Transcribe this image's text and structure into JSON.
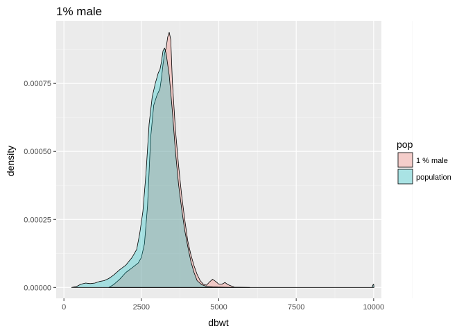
{
  "chart_data": {
    "type": "area",
    "title": "1% male",
    "xlabel": "dbwt",
    "ylabel": "density",
    "xlim": [
      -250,
      10250
    ],
    "ylim": [
      -4e-05,
      0.00098
    ],
    "x_ticks": [
      0,
      2500,
      5000,
      7500,
      10000
    ],
    "x_tick_labels": [
      "0",
      "2500",
      "5000",
      "7500",
      "10000"
    ],
    "y_ticks": [
      0,
      0.00025,
      0.0005,
      0.00075
    ],
    "y_tick_labels": [
      "0.00000",
      "0.00025",
      "0.00050",
      "0.00075"
    ],
    "grid": true,
    "legend": {
      "title": "pop",
      "position": "right"
    },
    "series": [
      {
        "name": "1 % male",
        "fill": "#F8766D",
        "points": [
          [
            1450,
            0
          ],
          [
            1600,
            1e-05
          ],
          [
            1800,
            3e-05
          ],
          [
            2000,
            5.5e-05
          ],
          [
            2200,
            7.2e-05
          ],
          [
            2400,
            9e-05
          ],
          [
            2500,
            0.00011
          ],
          [
            2600,
            0.00016
          ],
          [
            2700,
            0.0003
          ],
          [
            2800,
            0.00055
          ],
          [
            2900,
            0.00067
          ],
          [
            3000,
            0.000705
          ],
          [
            3100,
            0.00073
          ],
          [
            3150,
            0.00077
          ],
          [
            3200,
            0.00082
          ],
          [
            3250,
            0.00086
          ],
          [
            3300,
            0.00088
          ],
          [
            3350,
            0.00092
          ],
          [
            3400,
            0.000938
          ],
          [
            3450,
            0.00091
          ],
          [
            3500,
            0.00076
          ],
          [
            3600,
            0.00058
          ],
          [
            3700,
            0.00045
          ],
          [
            3800,
            0.00034
          ],
          [
            3900,
            0.00025
          ],
          [
            4000,
            0.00017
          ],
          [
            4100,
            0.00012
          ],
          [
            4200,
            8e-05
          ],
          [
            4300,
            4.8e-05
          ],
          [
            4400,
            2.5e-05
          ],
          [
            4500,
            1.2e-05
          ],
          [
            4600,
            8e-06
          ],
          [
            4700,
            2e-05
          ],
          [
            4800,
            3e-05
          ],
          [
            4900,
            2.2e-05
          ],
          [
            5000,
            1.2e-05
          ],
          [
            5100,
            1.2e-05
          ],
          [
            5200,
            1.8e-05
          ],
          [
            5300,
            1e-05
          ],
          [
            5500,
            1e-06
          ],
          [
            6000,
            0
          ]
        ]
      },
      {
        "name": "population",
        "fill": "#00BFC4",
        "points": [
          [
            250,
            0
          ],
          [
            400,
            3e-06
          ],
          [
            550,
            1.2e-05
          ],
          [
            700,
            1.6e-05
          ],
          [
            850,
            1.4e-05
          ],
          [
            1000,
            1.6e-05
          ],
          [
            1150,
            2.2e-05
          ],
          [
            1300,
            2.5e-05
          ],
          [
            1450,
            3.3e-05
          ],
          [
            1600,
            4.5e-05
          ],
          [
            1800,
            6.5e-05
          ],
          [
            2000,
            8.2e-05
          ],
          [
            2200,
            0.00011
          ],
          [
            2350,
            0.00014
          ],
          [
            2450,
            0.0002
          ],
          [
            2550,
            0.00028
          ],
          [
            2650,
            0.00042
          ],
          [
            2750,
            0.0006
          ],
          [
            2850,
            0.0007
          ],
          [
            2950,
            0.00075
          ],
          [
            3050,
            0.00079
          ],
          [
            3100,
            0.0008
          ],
          [
            3150,
            0.00083
          ],
          [
            3200,
            0.00087
          ],
          [
            3250,
            0.00088
          ],
          [
            3300,
            0.00086
          ],
          [
            3400,
            0.00078
          ],
          [
            3500,
            0.00065
          ],
          [
            3600,
            0.0005
          ],
          [
            3700,
            0.00038
          ],
          [
            3800,
            0.00029
          ],
          [
            3900,
            0.00021
          ],
          [
            4000,
            0.00015
          ],
          [
            4100,
            9.5e-05
          ],
          [
            4200,
            5.5e-05
          ],
          [
            4300,
            2.5e-05
          ],
          [
            4450,
            1e-05
          ],
          [
            4600,
            4e-06
          ],
          [
            4800,
            2e-06
          ],
          [
            5100,
            1e-06
          ],
          [
            5400,
            0
          ],
          [
            9950,
            0
          ],
          [
            9980,
            1e-05
          ],
          [
            10000,
            1.2e-05
          ],
          [
            10010,
            0
          ]
        ]
      }
    ]
  }
}
